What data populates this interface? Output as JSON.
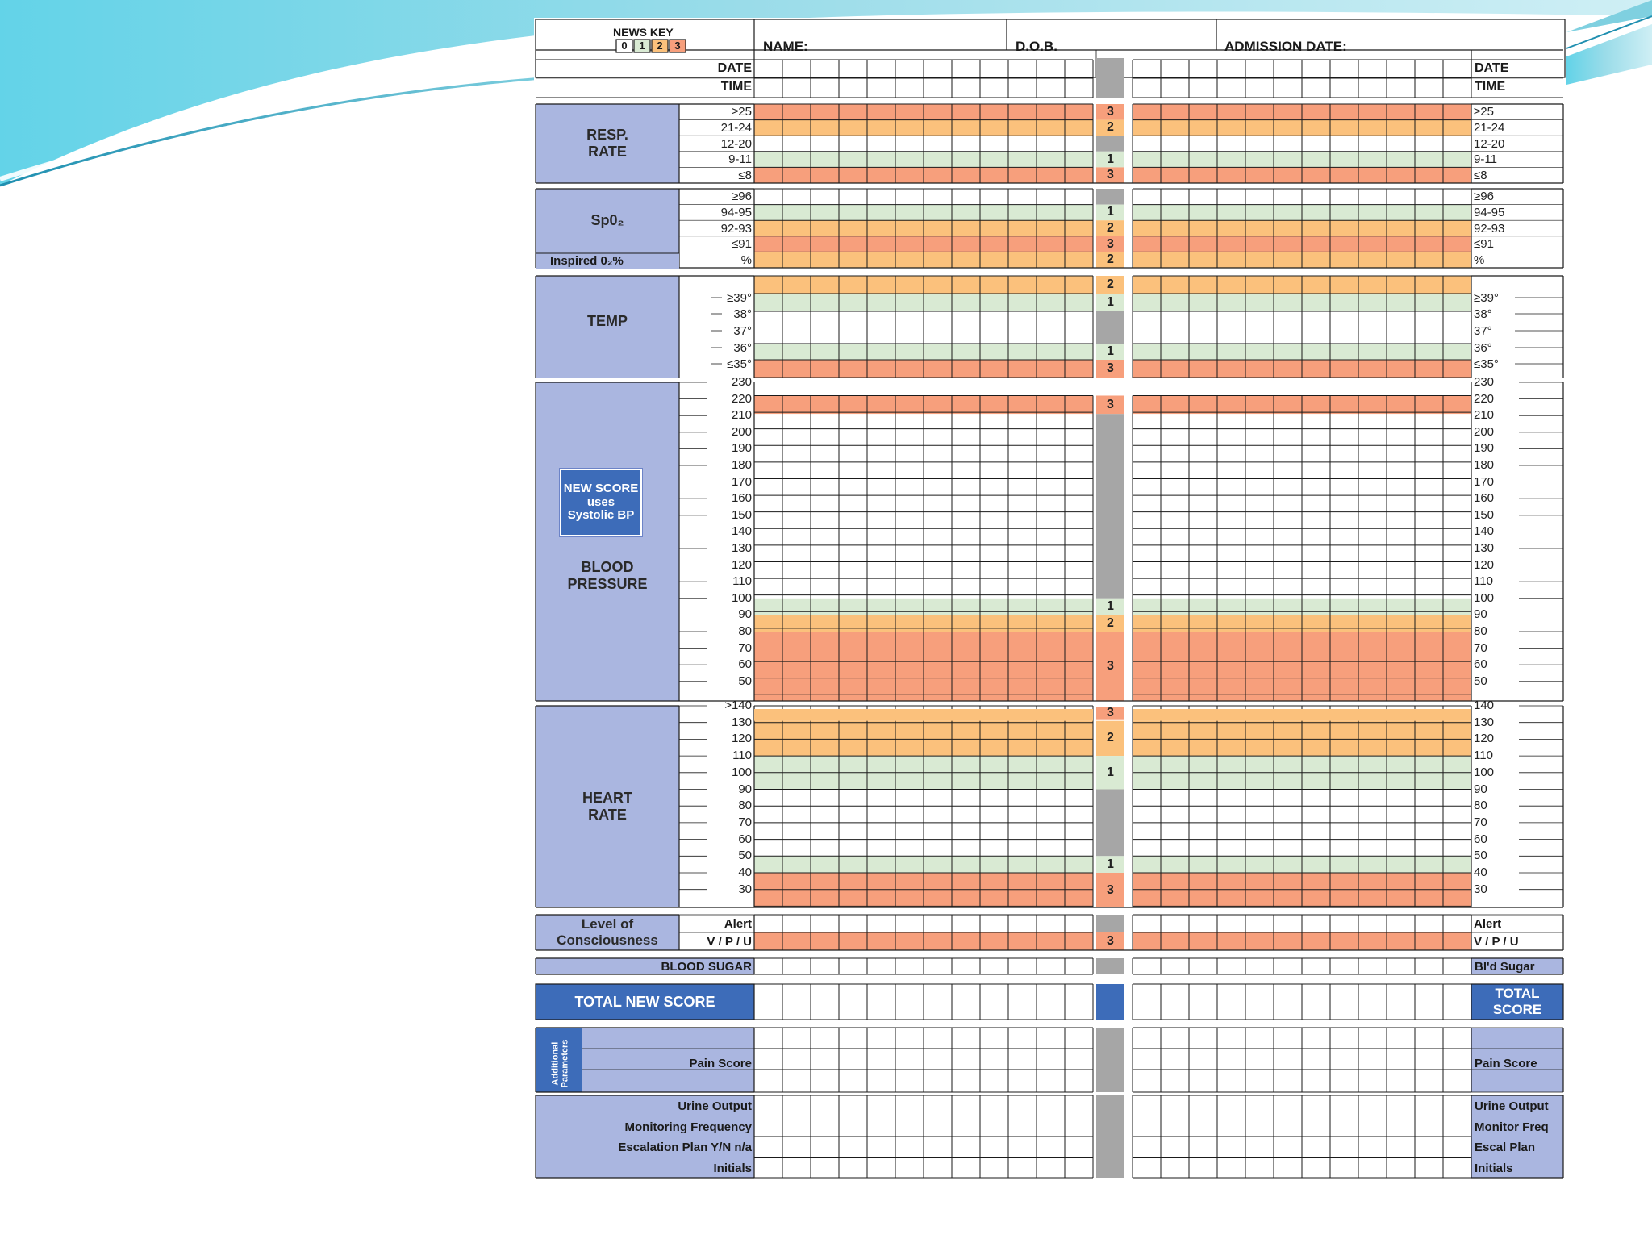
{
  "colors": {
    "score0": "#ffffff",
    "score1": "#d9ead3",
    "score2": "#fbc17c",
    "score3": "#f79f7c",
    "label_bg": "#aab6e0",
    "score_col": "#a6a6a6",
    "total_bg": "#3d6cb9",
    "grid": "#1a1a1a"
  },
  "header": {
    "news_key": "NEWS KEY",
    "key_values": [
      "0",
      "1",
      "2",
      "3"
    ],
    "name_label": "NAME:",
    "dob_label": "D.O.B.",
    "admission_label": "ADMISSION DATE:",
    "date_label": "DATE",
    "time_label": "TIME"
  },
  "sections": {
    "resp": {
      "title": "RESP.\nRATE",
      "rows": [
        {
          "label": "≥25",
          "score": "3"
        },
        {
          "label": "21-24",
          "score": "2"
        },
        {
          "label": "12-20",
          "score": ""
        },
        {
          "label": "9-11",
          "score": "1"
        },
        {
          "label": "≤8",
          "score": "3"
        }
      ]
    },
    "spo2": {
      "title": "Sp0₂",
      "sub_label": "Inspired 0₂%",
      "rows": [
        {
          "label": "≥96",
          "score": ""
        },
        {
          "label": "94-95",
          "score": "1"
        },
        {
          "label": "92-93",
          "score": "2"
        },
        {
          "label": "≤91",
          "score": "3"
        },
        {
          "label": "%",
          "score": "2"
        }
      ]
    },
    "temp": {
      "title": "TEMP",
      "rows": [
        {
          "label": "≥39°",
          "score": "2"
        },
        {
          "label": "38°",
          "score": "1"
        },
        {
          "label": "37°",
          "score": ""
        },
        {
          "label": "36°",
          "score": "1"
        },
        {
          "label": "≤35°",
          "score": "3"
        }
      ]
    },
    "bp": {
      "title": "BLOOD\nPRESSURE",
      "note": "NEW SCORE uses Systolic BP",
      "labels": [
        "230",
        "220",
        "210",
        "200",
        "190",
        "180",
        "170",
        "160",
        "150",
        "140",
        "130",
        "120",
        "110",
        "100",
        "90",
        "80",
        "70",
        "60",
        "50"
      ],
      "scores": [
        {
          "v": "3"
        },
        {
          "v": "1"
        },
        {
          "v": "2"
        },
        {
          "v": "3"
        }
      ]
    },
    "hr": {
      "title": "HEART\nRATE",
      "labels": [
        ">140",
        "130",
        "120",
        "110",
        "100",
        "90",
        "80",
        "70",
        "60",
        "50",
        "40",
        "30"
      ],
      "right_first": "140",
      "scores": [
        {
          "v": "3"
        },
        {
          "v": "2"
        },
        {
          "v": "1"
        },
        {
          "v": "1"
        },
        {
          "v": "3"
        }
      ]
    },
    "loc": {
      "title": "Level of\nConsciousness",
      "rows": [
        {
          "label": "Alert",
          "score": ""
        },
        {
          "label": "V / P / U",
          "score": "3"
        }
      ]
    },
    "sugar": {
      "label": "BLOOD SUGAR",
      "right": "Bl'd Sugar"
    },
    "total": {
      "label": "TOTAL NEW SCORE",
      "right": "TOTAL\nSCORE"
    },
    "additional": {
      "vertical": "Additional Parameters",
      "pain": "Pain Score"
    },
    "bottom": {
      "left": [
        "Urine Output",
        "Monitoring Frequency",
        "Escalation Plan Y/N n/a",
        "Initials"
      ],
      "right": [
        "Urine Output",
        "Monitor Freq",
        "Escal Plan",
        "Initials"
      ]
    }
  }
}
